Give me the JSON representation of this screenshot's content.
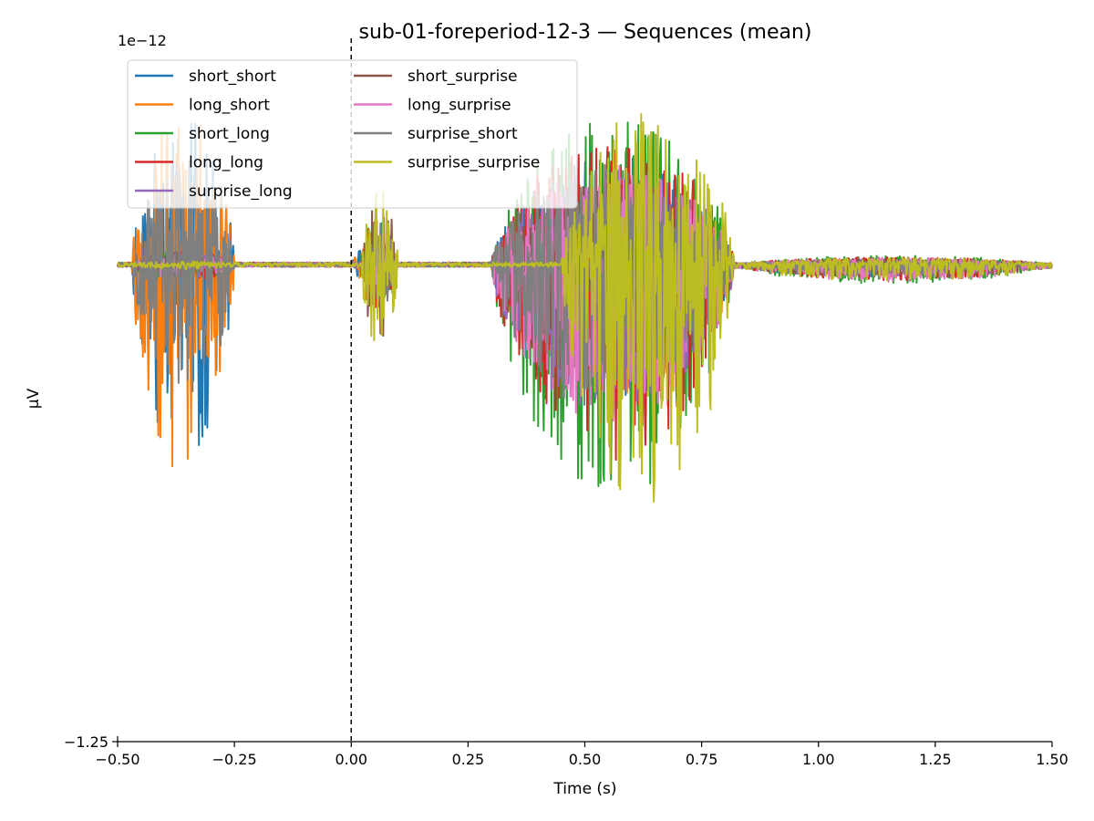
{
  "chart_data": {
    "type": "line",
    "title": "sub-01-foreperiod-12-3 — Sequences (mean)",
    "xlabel": "Time (s)",
    "ylabel": "µV",
    "y_offset_label": "1e−12",
    "xlim": [
      -0.5,
      1.5
    ],
    "ylim": [
      -1.25,
      0.55
    ],
    "x_ticks": [
      -0.5,
      -0.25,
      0.0,
      0.25,
      0.5,
      0.75,
      1.0,
      1.25,
      1.5
    ],
    "x_tick_labels": [
      "−0.50",
      "−0.25",
      "0.00",
      "0.25",
      "0.50",
      "0.75",
      "1.00",
      "1.25",
      "1.50"
    ],
    "y_ticks": [
      -1.25
    ],
    "y_tick_labels": [
      "−1.25"
    ],
    "vline_x": 0.0,
    "grid": false,
    "legend_position": "upper-left",
    "legend_columns": 2,
    "series": [
      {
        "name": "short_short",
        "color": "#1f77b4",
        "bursts": [
          [
            -0.47,
            -0.25,
            0.42,
            -0.4
          ],
          [
            0.0,
            0.08,
            0.05,
            0.0
          ],
          [
            0.3,
            0.82,
            0.32,
            0.5
          ],
          [
            0.82,
            1.5,
            0.02,
            1.2
          ]
        ]
      },
      {
        "name": "long_short",
        "color": "#ff7f0e",
        "bursts": [
          [
            -0.47,
            -0.25,
            0.45,
            -0.37
          ],
          [
            0.0,
            0.08,
            0.05,
            0.0
          ],
          [
            0.3,
            0.82,
            0.28,
            0.55
          ],
          [
            0.82,
            1.5,
            0.02,
            1.2
          ]
        ]
      },
      {
        "name": "short_long",
        "color": "#2ca02c",
        "bursts": [
          [
            -0.47,
            -0.25,
            0.04,
            -0.35
          ],
          [
            0.02,
            0.1,
            0.12,
            0.04
          ],
          [
            0.3,
            0.82,
            0.45,
            0.62
          ],
          [
            0.82,
            1.5,
            0.03,
            1.1
          ]
        ]
      },
      {
        "name": "long_long",
        "color": "#d62728",
        "bursts": [
          [
            -0.47,
            -0.25,
            0.04,
            -0.35
          ],
          [
            0.02,
            0.1,
            0.14,
            0.04
          ],
          [
            0.3,
            0.82,
            0.38,
            0.58
          ],
          [
            0.82,
            1.5,
            0.025,
            1.1
          ]
        ]
      },
      {
        "name": "surprise_long",
        "color": "#9467bd",
        "bursts": [
          [
            -0.47,
            -0.25,
            0.03,
            -0.35
          ],
          [
            0.02,
            0.1,
            0.1,
            0.04
          ],
          [
            0.3,
            0.82,
            0.3,
            0.6
          ],
          [
            0.82,
            1.5,
            0.02,
            1.1
          ]
        ]
      },
      {
        "name": "short_surprise",
        "color": "#8c564b",
        "bursts": [
          [
            -0.47,
            -0.25,
            0.03,
            -0.35
          ],
          [
            0.02,
            0.1,
            0.2,
            0.04
          ],
          [
            0.3,
            0.82,
            0.25,
            0.6
          ],
          [
            0.82,
            1.5,
            0.02,
            1.2
          ]
        ]
      },
      {
        "name": "long_surprise",
        "color": "#e377c2",
        "bursts": [
          [
            -0.47,
            -0.25,
            0.03,
            -0.35
          ],
          [
            0.02,
            0.1,
            0.08,
            0.04
          ],
          [
            0.3,
            0.82,
            0.3,
            0.65
          ],
          [
            0.82,
            1.5,
            0.025,
            1.35
          ]
        ]
      },
      {
        "name": "surprise_short",
        "color": "#7f7f7f",
        "bursts": [
          [
            -0.47,
            -0.25,
            0.3,
            -0.36
          ],
          [
            0.02,
            0.1,
            0.12,
            0.04
          ],
          [
            0.3,
            0.82,
            0.3,
            0.55
          ],
          [
            0.82,
            1.5,
            0.015,
            1.1
          ]
        ]
      },
      {
        "name": "surprise_surprise",
        "color": "#bcbd22",
        "bursts": [
          [
            -0.47,
            -0.25,
            0.01,
            -0.35
          ],
          [
            0.02,
            0.1,
            0.22,
            0.04
          ],
          [
            0.45,
            0.82,
            0.47,
            0.62
          ],
          [
            0.82,
            1.5,
            0.025,
            1.3
          ]
        ]
      }
    ]
  }
}
